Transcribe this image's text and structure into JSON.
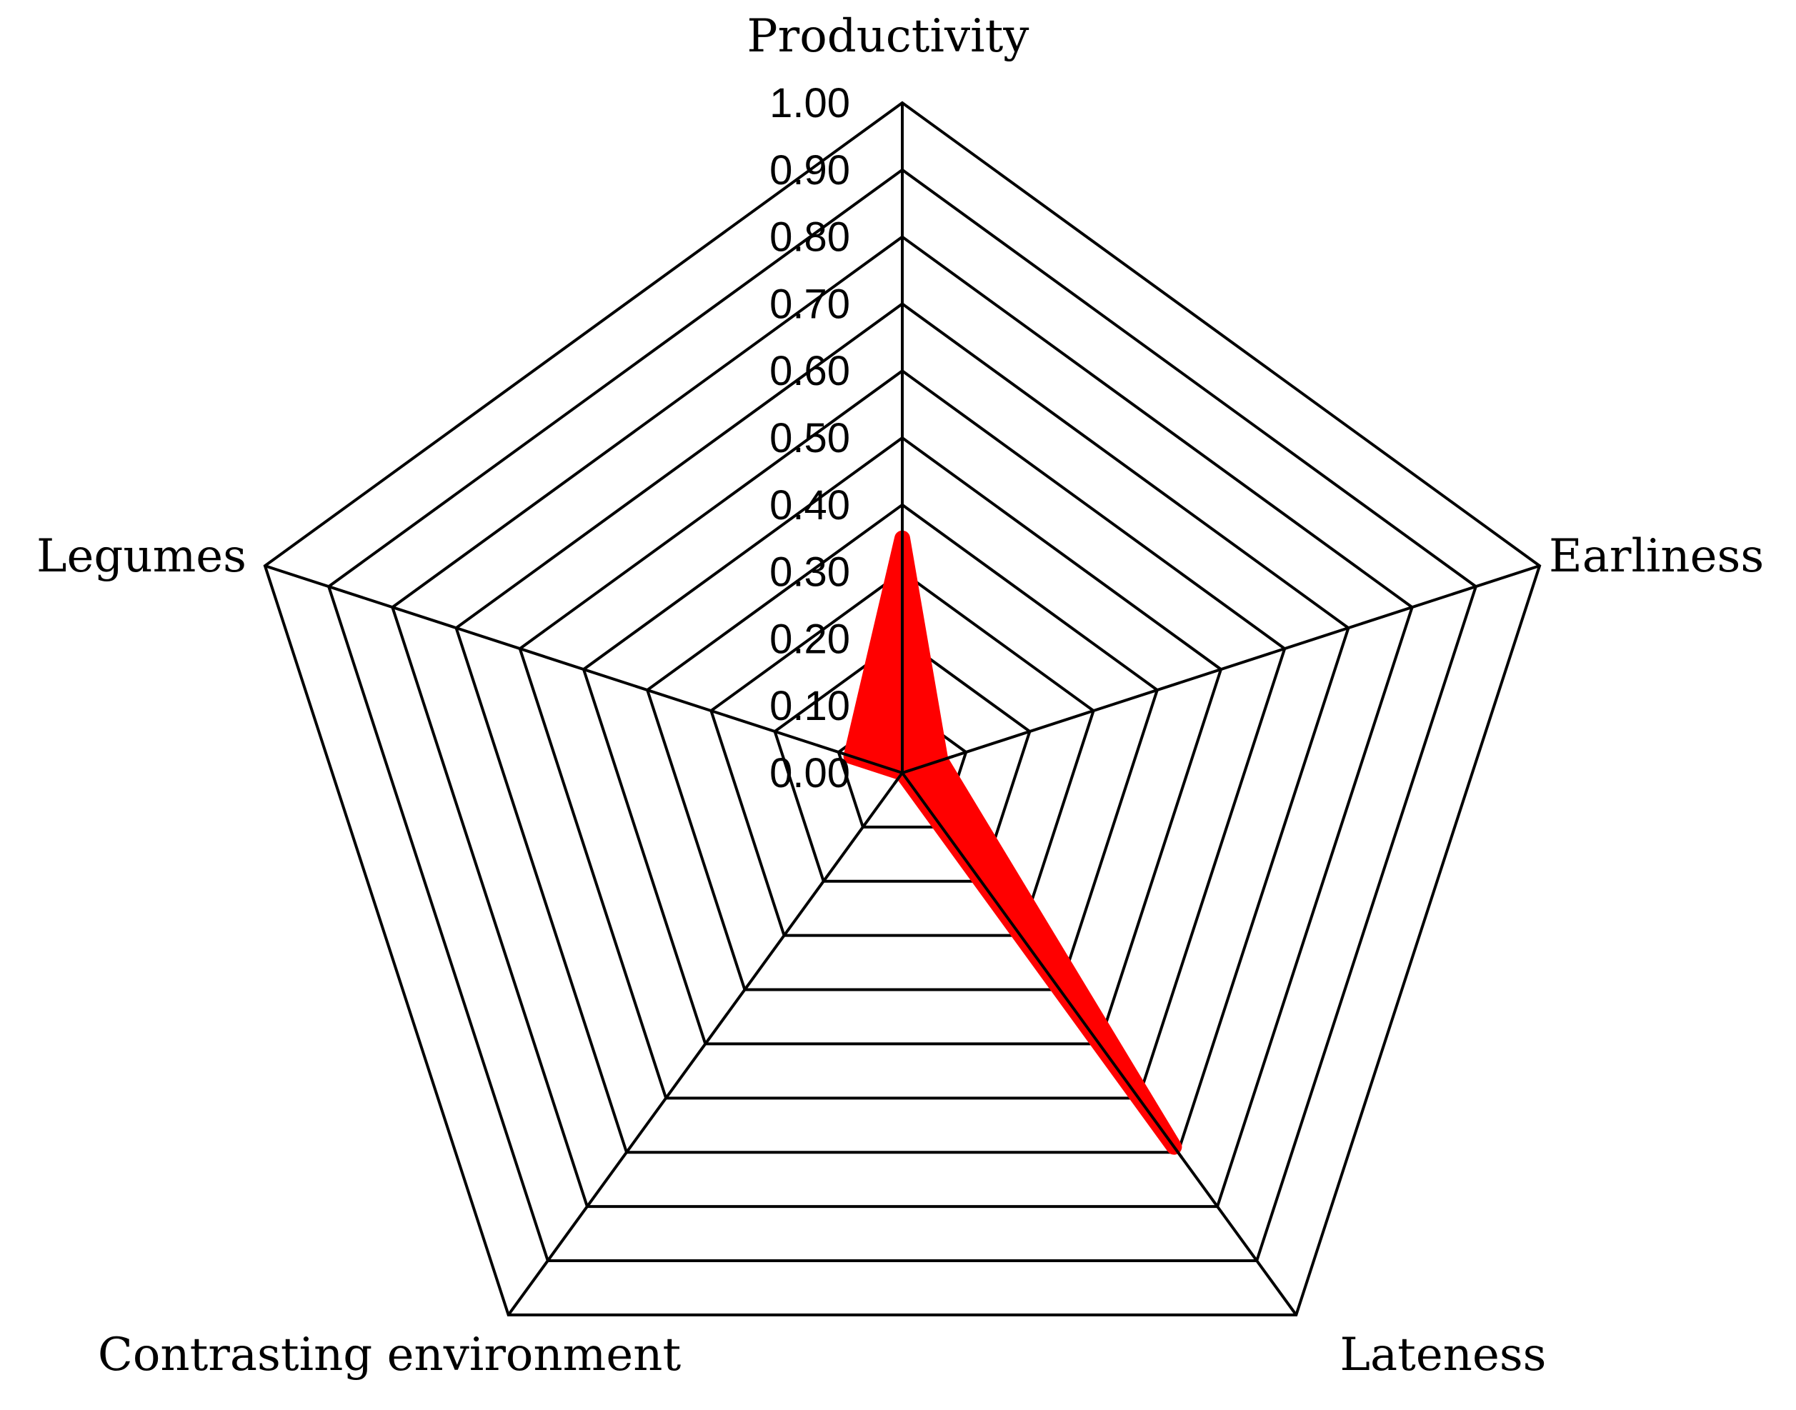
{
  "chart_data": {
    "type": "radar",
    "title": "",
    "categories": [
      "Productivity",
      "Earliness",
      "Lateness",
      "Contrasting environment",
      "Legumes"
    ],
    "series": [
      {
        "name": "",
        "color": "#ff0000",
        "values": [
          0.35,
          0.06,
          0.69,
          0.0,
          0.08
        ]
      }
    ],
    "radial_axis": {
      "min": 0.0,
      "max": 1.0,
      "step": 0.1,
      "tick_labels": [
        "0.00",
        "0.10",
        "0.20",
        "0.30",
        "0.40",
        "0.50",
        "0.60",
        "0.70",
        "0.80",
        "0.90",
        "1.00"
      ]
    },
    "grid": true,
    "legend": null
  },
  "colors": {
    "series": "#ff0000",
    "grid": "#000000",
    "background": "#ffffff"
  }
}
